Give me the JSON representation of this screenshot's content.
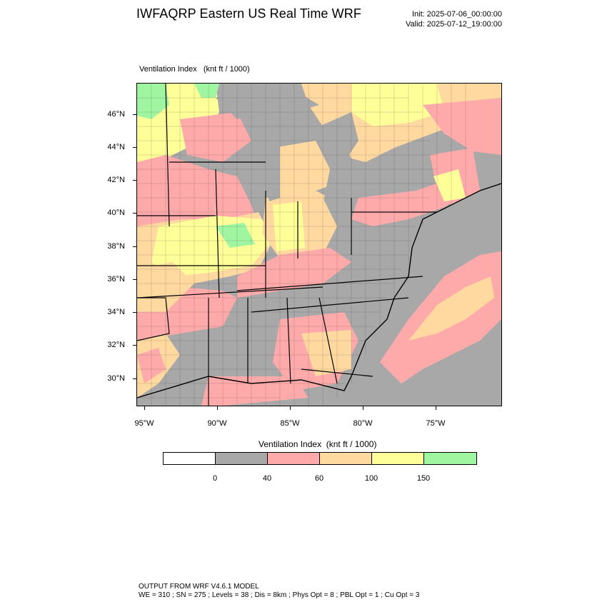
{
  "title": "IWFAQRP Eastern US Real Time WRF",
  "init": "Init: 2025-07-06_00:00:00",
  "valid": "Valid: 2025-07-12_19:00:00",
  "map_subtitle": "Ventilation Index   (knt ft / 1000)",
  "lat_labels": [
    "46°N",
    "44°N",
    "42°N",
    "40°N",
    "38°N",
    "36°N",
    "34°N",
    "32°N",
    "30°N"
  ],
  "lon_labels": [
    "95°W",
    "90°W",
    "85°W",
    "80°W",
    "75°W"
  ],
  "legend": {
    "title": "Ventilation Index  (knt ft / 1000)",
    "colors": [
      "#ffffff",
      "#a8a8a8",
      "#ffaaaa",
      "#ffd9a0",
      "#ffff99",
      "#a0f5a0"
    ],
    "labels": [
      "0",
      "40",
      "60",
      "100",
      "150"
    ]
  },
  "footer": {
    "line1": "OUTPUT FROM WRF V4.6.1 MODEL",
    "line2": "WE = 310 ; SN = 275 ; Levels = 38 ; Dis = 8km ; Phys Opt = 8 ; PBL Opt = 1 ; Cu Opt = 3"
  },
  "map_colors": {
    "gray": "#a8a8a8",
    "pink": "#ffaaaa",
    "orange": "#ffd9a0",
    "yellow": "#ffff99",
    "green": "#a0f5a0",
    "water": "#a8a8a8"
  }
}
